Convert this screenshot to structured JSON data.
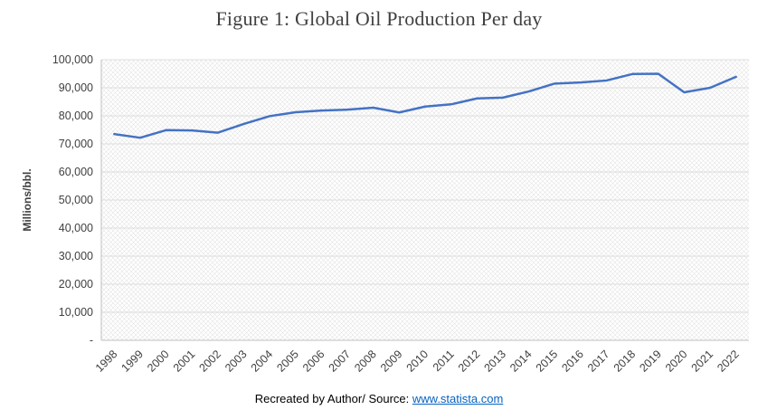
{
  "title": "Figure 1: Global Oil Production Per day",
  "caption": {
    "text": "Recreated by Author/ Source:",
    "link": "www.statista.com"
  },
  "chart_data": {
    "type": "line",
    "title": "Figure 1: Global Oil Production Per day",
    "xlabel": "",
    "ylabel": "Millions/bbl.",
    "ylim": [
      0,
      100000
    ],
    "y_tick_step": 10000,
    "y_ticks": [
      {
        "value": 0,
        "label": "-"
      },
      {
        "value": 10000,
        "label": "10,000"
      },
      {
        "value": 20000,
        "label": "20,000"
      },
      {
        "value": 30000,
        "label": "30,000"
      },
      {
        "value": 40000,
        "label": "40,000"
      },
      {
        "value": 50000,
        "label": "50,000"
      },
      {
        "value": 60000,
        "label": "60,000"
      },
      {
        "value": 70000,
        "label": "70,000"
      },
      {
        "value": 80000,
        "label": "80,000"
      },
      {
        "value": 90000,
        "label": "90,000"
      },
      {
        "value": 100000,
        "label": "100,000"
      }
    ],
    "categories": [
      "1998",
      "1999",
      "2000",
      "2001",
      "2002",
      "2003",
      "2004",
      "2005",
      "2006",
      "2007",
      "2008",
      "2009",
      "2010",
      "2011",
      "2012",
      "2013",
      "2014",
      "2015",
      "2016",
      "2017",
      "2018",
      "2019",
      "2020",
      "2021",
      "2022"
    ],
    "series": [
      {
        "name": "Global oil production per day",
        "values": [
          73500,
          72200,
          74900,
          74800,
          74000,
          77100,
          79900,
          81300,
          81900,
          82200,
          82900,
          81200,
          83300,
          84100,
          86200,
          86500,
          88700,
          91500,
          91900,
          92600,
          94900,
          95000,
          88400,
          90000,
          93900
        ]
      }
    ],
    "line_color": "#4472c4",
    "grid": true,
    "legend_position": "none",
    "plot_background": "light-crosshatch-pattern",
    "axis_color": "#bfbfbf",
    "tick_label_color": "#404040"
  }
}
